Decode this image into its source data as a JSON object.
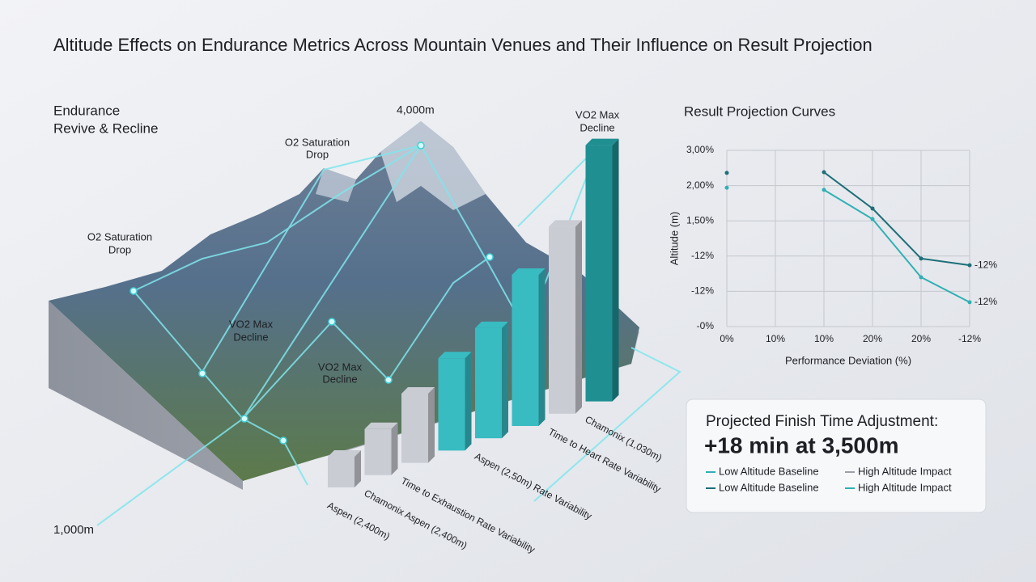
{
  "title": "Altitude Effects on Endurance Metrics Across Mountain Venues and Their Influence on Result Projection",
  "annotations": {
    "endurance": [
      "Endurance",
      "Revive & Recline"
    ],
    "peak": "4,000m",
    "o2_top": [
      "O2 Saturation",
      "Drop"
    ],
    "o2_left": [
      "O2 Saturation",
      "Drop"
    ],
    "vo2_top": [
      "VO2 Max",
      "Decline"
    ],
    "vo2_mid": [
      "VO2 Max",
      "Decline"
    ],
    "vo2_low": [
      "VO2 Max",
      "Decline"
    ],
    "base": "1,000m"
  },
  "chart_data": [
    {
      "type": "bar",
      "categories": [
        "Aspen (2,400m)",
        "Chamonix Aspen (2,400m)",
        "Time to Exhaustion Rate Variability",
        null,
        "Aspen (2,50m) Rate Variability",
        null,
        "Time to Heart Rate Variability",
        "Chamonix (1,030m)"
      ],
      "values": [
        12,
        18,
        27,
        36,
        43,
        59,
        73,
        100
      ],
      "colors": [
        "#c9ccd3",
        "#c9ccd3",
        "#c9ccd3",
        "#38bcc2",
        "#38bcc2",
        "#38bcc2",
        "#c9ccd3",
        "#1f8f92"
      ]
    },
    {
      "type": "line",
      "title": "Result Projection Curves",
      "x_label": "Performance Deviation (%)",
      "y_label": "Altitude (m)",
      "categories": [
        "0%",
        "10%",
        "10%",
        "20%",
        "20%",
        "-12%"
      ],
      "ylim": [
        0,
        5
      ],
      "yticks": [
        {
          "value": 5,
          "label": "3,00%"
        },
        {
          "value": 4,
          "label": "2,00%"
        },
        {
          "value": 3,
          "label": "1,50%"
        },
        {
          "value": 2,
          "label": "-12%"
        },
        {
          "value": 1,
          "label": "-12%"
        },
        {
          "value": 0,
          "label": "-0%"
        }
      ],
      "grid": true,
      "series": [
        {
          "color": "#1d6f78",
          "values": [
            4.36,
            null,
            4.38,
            3.35,
            1.93,
            1.74
          ],
          "end_label": "-12%"
        },
        {
          "color": "#2fb0b4",
          "values": [
            3.94,
            null,
            3.88,
            3.05,
            1.4,
            0.69
          ],
          "end_label": "-12%"
        }
      ]
    }
  ],
  "summary": {
    "heading": "Projected Finish Time Adjustment:",
    "value": "+18 min at 3,500m",
    "legend": [
      {
        "name": "Low Altitude Baseline",
        "color": "#2fb0b4"
      },
      {
        "name": "High Altitude Impact",
        "color": "#9aa0a8"
      },
      {
        "name": "Low Altitude Baseline",
        "color": "#1d6f78"
      },
      {
        "name": "High Altitude Impact",
        "color": "#2fb0b4"
      }
    ]
  }
}
